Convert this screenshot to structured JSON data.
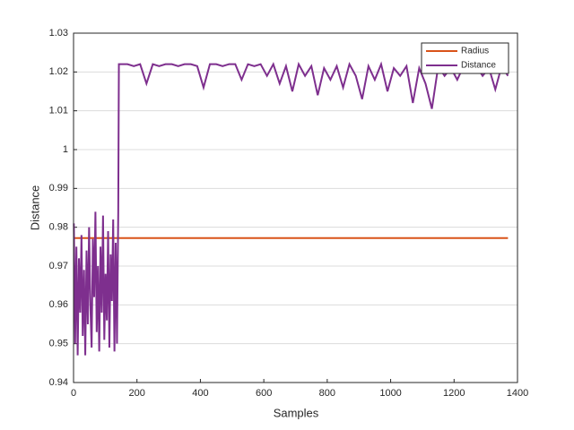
{
  "chart_data": {
    "type": "line",
    "xlabel": "Samples",
    "ylabel": "Distance",
    "xlim": [
      0,
      1400
    ],
    "xticks": [
      0,
      200,
      400,
      600,
      800,
      1000,
      1200,
      1400
    ],
    "ylim": [
      0.94,
      1.03
    ],
    "yticks": [
      0.94,
      0.95,
      0.96,
      0.97,
      0.98,
      0.99,
      1,
      1.01,
      1.02,
      1.03
    ],
    "grid": true,
    "legend": "upper right",
    "series": [
      {
        "name": "Radius",
        "color": "#d95319",
        "x": [
          1,
          1370
        ],
        "values": [
          0.9772,
          0.9772
        ]
      },
      {
        "name": "Distance",
        "color": "#7e2f8e",
        "x": [
          1,
          5,
          9,
          13,
          17,
          21,
          25,
          29,
          33,
          37,
          41,
          45,
          49,
          53,
          57,
          61,
          65,
          69,
          73,
          77,
          81,
          85,
          89,
          93,
          97,
          101,
          105,
          109,
          113,
          117,
          121,
          125,
          129,
          133,
          137,
          141,
          143,
          150,
          170,
          190,
          210,
          230,
          250,
          270,
          290,
          310,
          330,
          350,
          370,
          390,
          410,
          430,
          450,
          470,
          490,
          510,
          530,
          550,
          570,
          590,
          610,
          630,
          650,
          670,
          690,
          710,
          730,
          750,
          770,
          790,
          810,
          830,
          850,
          870,
          890,
          910,
          930,
          950,
          970,
          990,
          1010,
          1030,
          1050,
          1070,
          1090,
          1110,
          1130,
          1150,
          1170,
          1190,
          1210,
          1230,
          1250,
          1270,
          1290,
          1310,
          1330,
          1350,
          1370
        ],
        "values": [
          0.981,
          0.95,
          0.975,
          0.947,
          0.972,
          0.958,
          0.978,
          0.952,
          0.969,
          0.947,
          0.974,
          0.955,
          0.98,
          0.96,
          0.949,
          0.977,
          0.962,
          0.984,
          0.953,
          0.97,
          0.948,
          0.975,
          0.958,
          0.983,
          0.951,
          0.968,
          0.956,
          0.979,
          0.949,
          0.973,
          0.961,
          0.982,
          0.948,
          0.976,
          0.95,
          0.984,
          1.022,
          1.022,
          1.022,
          1.0215,
          1.022,
          1.017,
          1.022,
          1.0215,
          1.022,
          1.022,
          1.0215,
          1.022,
          1.022,
          1.0215,
          1.016,
          1.022,
          1.022,
          1.0215,
          1.022,
          1.022,
          1.018,
          1.022,
          1.0215,
          1.022,
          1.019,
          1.022,
          1.017,
          1.0215,
          1.015,
          1.022,
          1.019,
          1.0215,
          1.014,
          1.021,
          1.018,
          1.0215,
          1.016,
          1.022,
          1.019,
          1.013,
          1.0215,
          1.018,
          1.022,
          1.015,
          1.021,
          1.019,
          1.0215,
          1.012,
          1.021,
          1.017,
          1.0105,
          1.0215,
          1.019,
          1.021,
          1.018,
          1.0215,
          1.02,
          1.0215,
          1.019,
          1.021,
          1.0155,
          1.0215,
          1.019
        ]
      }
    ]
  }
}
